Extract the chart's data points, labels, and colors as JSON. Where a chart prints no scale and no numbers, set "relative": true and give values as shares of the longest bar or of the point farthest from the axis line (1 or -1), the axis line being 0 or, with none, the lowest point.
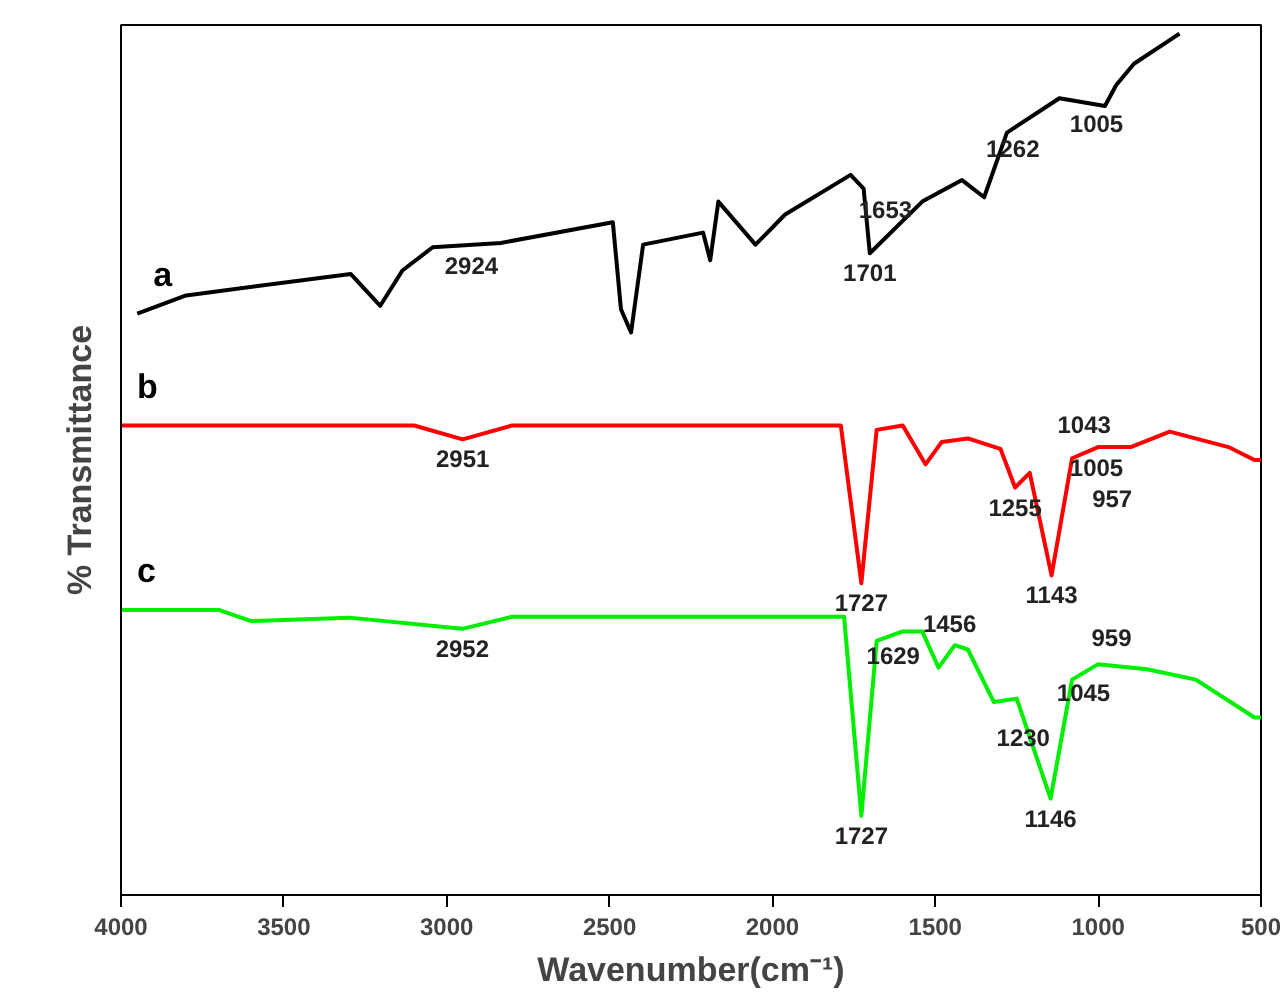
{
  "chart_data": {
    "type": "line",
    "relative": true,
    "xlabel": "Wavenumber(cm⁻¹)",
    "ylabel": "% Transmittance",
    "xlim": [
      4000,
      500
    ],
    "xticks": [
      4000,
      3500,
      3000,
      2500,
      2000,
      1500,
      1000,
      500
    ],
    "tick_labels": "x",
    "grid": false,
    "line_style": "solid",
    "marker": "none",
    "series": [
      {
        "name": "a",
        "color": "#000000",
        "x": [
          3950,
          3800,
          3295,
          3204,
          3136,
          3043,
          2834,
          2490,
          2465,
          2434,
          2397,
          2213,
          2191,
          2166,
          2052,
          1961,
          1760,
          1720,
          1701,
          1540,
          1418,
          1350,
          1280,
          1119,
          979,
          945,
          890,
          750
        ],
        "values": [
          0.675,
          0.696,
          0.721,
          0.684,
          0.725,
          0.752,
          0.757,
          0.781,
          0.68,
          0.653,
          0.755,
          0.769,
          0.737,
          0.805,
          0.755,
          0.79,
          0.836,
          0.82,
          0.745,
          0.805,
          0.83,
          0.81,
          0.885,
          0.925,
          0.916,
          0.94,
          0.965,
          1.0
        ]
      },
      {
        "name": "b",
        "color": "#ff0000",
        "x": [
          4000,
          3100,
          2951,
          2800,
          2000,
          1790,
          1727,
          1680,
          1600,
          1530,
          1480,
          1400,
          1300,
          1255,
          1210,
          1143,
          1080,
          1000,
          900,
          780,
          600,
          520,
          500
        ],
        "values": [
          0.545,
          0.545,
          0.529,
          0.545,
          0.545,
          0.545,
          0.362,
          0.54,
          0.545,
          0.5,
          0.526,
          0.53,
          0.518,
          0.473,
          0.49,
          0.371,
          0.507,
          0.52,
          0.52,
          0.538,
          0.52,
          0.505,
          0.505
        ]
      },
      {
        "name": "c",
        "color": "#00ee00",
        "x": [
          4000,
          3700,
          3600,
          3300,
          2952,
          2800,
          1780,
          1727,
          1680,
          1600,
          1540,
          1490,
          1440,
          1400,
          1320,
          1250,
          1146,
          1080,
          1000,
          850,
          700,
          520,
          500
        ],
        "values": [
          0.331,
          0.331,
          0.318,
          0.322,
          0.309,
          0.323,
          0.323,
          0.092,
          0.295,
          0.306,
          0.306,
          0.264,
          0.29,
          0.285,
          0.224,
          0.228,
          0.112,
          0.25,
          0.268,
          0.262,
          0.25,
          0.206,
          0.206
        ]
      }
    ],
    "annotations": [
      {
        "text": "2924",
        "x": 2924,
        "y": 0.754
      },
      {
        "text": "1701",
        "x": 1701,
        "y": 0.745
      },
      {
        "text": "1653",
        "x": 1653,
        "y": 0.763
      },
      {
        "text": "1262",
        "x": 1262,
        "y": 0.889
      },
      {
        "text": "1005",
        "x": 1005,
        "y": 0.918
      },
      {
        "text": "2951",
        "x": 2951,
        "y": 0.529
      },
      {
        "text": "1727",
        "x": 1727,
        "y": 0.362
      },
      {
        "text": "1255",
        "x": 1255,
        "y": 0.473
      },
      {
        "text": "1005",
        "x": 1005,
        "y": 0.519
      },
      {
        "text": "1043",
        "x": 1043,
        "y": 0.513
      },
      {
        "text": "957",
        "x": 957,
        "y": 0.52
      },
      {
        "text": "1143",
        "x": 1143,
        "y": 0.371
      },
      {
        "text": "2952",
        "x": 2952,
        "y": 0.309
      },
      {
        "text": "1629",
        "x": 1629,
        "y": 0.301
      },
      {
        "text": "1456",
        "x": 1456,
        "y": 0.282
      },
      {
        "text": "1230",
        "x": 1230,
        "y": 0.206
      },
      {
        "text": "1045",
        "x": 1045,
        "y": 0.258
      },
      {
        "text": "959",
        "x": 959,
        "y": 0.266
      },
      {
        "text": "1146",
        "x": 1146,
        "y": 0.112
      },
      {
        "text": "1727",
        "x": 1727,
        "y": 0.092
      }
    ]
  }
}
